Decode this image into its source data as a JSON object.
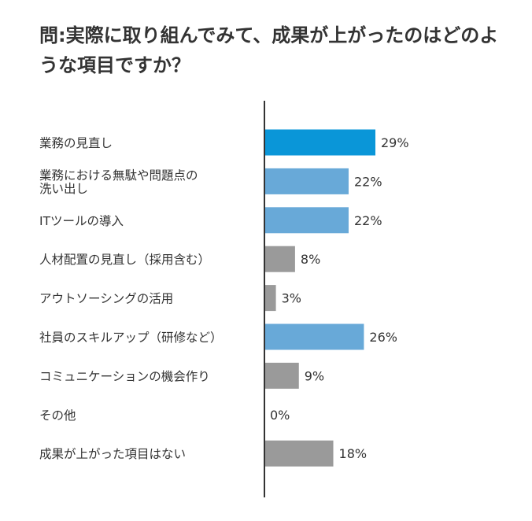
{
  "chart_data": {
    "type": "bar",
    "orientation": "horizontal",
    "title": "問:実際に取り組んでみて、成果が上がったのはどのような項目ですか？",
    "categories": [
      [
        "業務の見直し"
      ],
      [
        "業務における無駄や問題点の",
        "洗い出し"
      ],
      [
        "ITツールの導入"
      ],
      [
        "人材配置の見直し（採用含む）"
      ],
      [
        "アウトソーシングの活用"
      ],
      [
        "社員のスキルアップ（研修など）"
      ],
      [
        "コミュニケーションの機会作り"
      ],
      [
        "その他"
      ],
      [
        "成果が上がった項目はない"
      ]
    ],
    "values": [
      29,
      22,
      22,
      8,
      3,
      26,
      9,
      0,
      18
    ],
    "value_labels": [
      "29%",
      "22%",
      "22%",
      "8%",
      "3%",
      "26%",
      "9%",
      "0%",
      "18%"
    ],
    "bar_colors": [
      "#0a96d8",
      "#68a9d8",
      "#68a9d8",
      "#9a9a9a",
      "#9a9a9a",
      "#68a9d8",
      "#9a9a9a",
      "#9a9a9a",
      "#9a9a9a"
    ],
    "xlim": [
      0,
      30
    ],
    "grid": false,
    "legend": "none"
  }
}
